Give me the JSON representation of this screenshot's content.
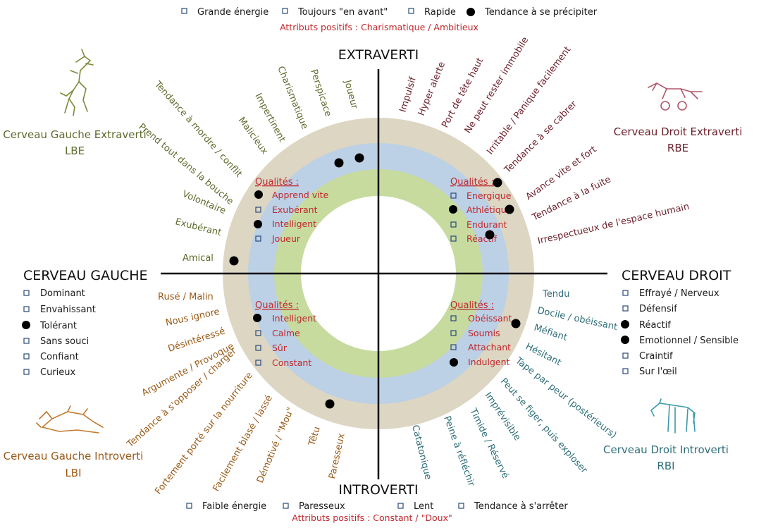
{
  "top": {
    "legend": [
      {
        "text": "Grande énergie",
        "marker": "square"
      },
      {
        "text": "Toujours \"en avant\"",
        "marker": "square"
      },
      {
        "text": "Rapide",
        "marker": "square"
      },
      {
        "text": "Tendance à se précipiter",
        "marker": "dot"
      }
    ],
    "subtitle": "Attributs positifs : Charismatique / Ambitieux"
  },
  "bottom": {
    "legend": [
      {
        "text": "Faible énergie",
        "marker": "square"
      },
      {
        "text": "Paresseux",
        "marker": "square"
      },
      {
        "text": "Lent",
        "marker": "square"
      },
      {
        "text": "Tendance à s'arrêter",
        "marker": "square"
      }
    ],
    "subtitle": "Attributs positifs : Constant / \"Doux\""
  },
  "axes": {
    "top": "EXTRAVERTI",
    "bottom": "INTROVERTI",
    "left": "CERVEAU GAUCHE",
    "right": "CERVEAU DROIT"
  },
  "corners": {
    "lbe": {
      "line1": "Cerveau Gauche Extraverti",
      "line2": "LBE",
      "color": "#5d6b2c"
    },
    "rbe": {
      "line1": "Cerveau Droit Extraverti",
      "line2": "RBE",
      "color": "#6b1f2a"
    },
    "lbi": {
      "line1": "Cerveau Gauche Introverti",
      "line2": "LBI",
      "color": "#9a5a17"
    },
    "rbi": {
      "line1": "Cerveau Droit Introverti",
      "line2": "RBI",
      "color": "#2f6e78"
    }
  },
  "left_list": [
    {
      "text": "Dominant",
      "marker": "square"
    },
    {
      "text": "Envahissant",
      "marker": "square"
    },
    {
      "text": "Tolérant",
      "marker": "dot"
    },
    {
      "text": "Sans souci",
      "marker": "square"
    },
    {
      "text": "Confiant",
      "marker": "square"
    },
    {
      "text": "Curieux",
      "marker": "square"
    }
  ],
  "right_list": [
    {
      "text": "Effrayé / Nerveux",
      "marker": "square"
    },
    {
      "text": "Défensif",
      "marker": "square"
    },
    {
      "text": "Réactif",
      "marker": "dot"
    },
    {
      "text": "Emotionnel  / Sensible",
      "marker": "dot"
    },
    {
      "text": "Craintif",
      "marker": "square"
    },
    {
      "text": "Sur l'œil",
      "marker": "square"
    }
  ],
  "qualities": {
    "title": "Qualités :",
    "ul": [
      {
        "text": "Apprend vite",
        "marker": "dot"
      },
      {
        "text": "Exubérant",
        "marker": "square"
      },
      {
        "text": "Intelligent",
        "marker": "dot"
      },
      {
        "text": "Joueur",
        "marker": "square"
      }
    ],
    "ur": [
      {
        "text": "Energique",
        "marker": "square"
      },
      {
        "text": "Athlétique",
        "marker": "dot"
      },
      {
        "text": "Endurant",
        "marker": "square"
      },
      {
        "text": "Réactif",
        "marker": "square"
      }
    ],
    "ll": [
      {
        "text": "Intelligent",
        "marker": "dot"
      },
      {
        "text": "Calme",
        "marker": "square"
      },
      {
        "text": "Sûr",
        "marker": "square"
      },
      {
        "text": "Constant",
        "marker": "square"
      }
    ],
    "lr": [
      {
        "text": "Obéissant",
        "marker": "square"
      },
      {
        "text": "Soumis",
        "marker": "square"
      },
      {
        "text": "Attachant",
        "marker": "square"
      },
      {
        "text": "Indulgent",
        "marker": "dot"
      }
    ]
  },
  "traits": {
    "ul": [
      "Amical",
      "Exubérant",
      "Volontaire",
      "Prend tout dans la bouche",
      "Tendance à mordre  / conflit",
      "Malicieux",
      "Impertinent",
      "Charismatique",
      "Perspicace",
      "Joueur"
    ],
    "ur": [
      "Impulsif",
      "Hyper alerte",
      "Port de tête haut",
      "Ne peut rester immobile",
      "Irritable / Panique facilement",
      "Tendance à se cabrer",
      "Avance vite et fort",
      "Tendance à la fuite",
      "Irrespectueux de l'espace humain"
    ],
    "ll": [
      "Rusé / Malin",
      "Nous ignore",
      "Désintéressé",
      "Argumente / Provoque",
      "Tendance à s'opposer / charger",
      "Fortement porté sur la nourriture",
      "Facilement blasé / lassé",
      "Démotivé / \"Mou\"",
      "Têtu",
      "Paresseux"
    ],
    "lr": [
      "Tendu",
      "Docile / obéissant",
      "Méfiant",
      "Hésitant",
      "Tape par peur (postérieurs)",
      "Peut se figer, puis exploser",
      "Imprévisible",
      "Timide / Réservé",
      "Peine à réfléchir",
      "Catatonique"
    ]
  },
  "colors": {
    "outer_ring": "#dcd6c3",
    "middle_ring": "#bcd0e6",
    "inner_ring": "#c7db9f",
    "accent_red": "#c0282d",
    "axis": "#000000"
  }
}
